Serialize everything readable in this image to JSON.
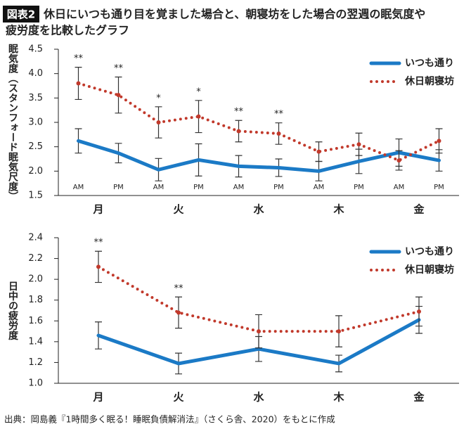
{
  "header": {
    "badge": "図表2",
    "title_lines": [
      "休日にいつも通り目を覚ました場合と、朝寝坊をした場合の翌週の眠気度や",
      "疲労度を比較したグラフ"
    ]
  },
  "source": "出典：岡島義『1時間多く眠る！睡眠負債解消法』（さくら舎、2020）をもとに作成",
  "chart_data": [
    {
      "type": "line",
      "y_label": "眠気度（スタンフォード眠気尺度）",
      "categories": [
        "AM",
        "PM",
        "AM",
        "PM",
        "AM",
        "PM",
        "AM",
        "PM",
        "AM",
        "PM"
      ],
      "groups": [
        "月",
        "火",
        "水",
        "木",
        "金"
      ],
      "ylim": [
        1.5,
        4.5
      ],
      "yticks": [
        1.5,
        {
          "value": 2,
          "label": "2.0"
        },
        2.5,
        {
          "value": 3,
          "label": "3.0"
        },
        3.5,
        {
          "value": 4,
          "label": "4.0"
        },
        4.5
      ],
      "legend": "upper right",
      "series": [
        {
          "name": "いつも通り",
          "color": "#1b7ac6",
          "style": "solid",
          "values": [
            2.62,
            2.37,
            2.03,
            2.23,
            2.1,
            2.07,
            2.0,
            2.2,
            2.38,
            2.22
          ],
          "errors": [
            0.25,
            0.2,
            0.23,
            0.33,
            0.22,
            0.18,
            0.2,
            0.25,
            0.28,
            0.22
          ]
        },
        {
          "name": "休日朝寝坊",
          "color": "#c1392b",
          "style": "dotted",
          "values": [
            3.8,
            3.56,
            3.0,
            3.12,
            2.82,
            2.77,
            2.4,
            2.55,
            2.22,
            2.62
          ],
          "errors": [
            0.33,
            0.37,
            0.32,
            0.33,
            0.22,
            0.22,
            0.2,
            0.23,
            0.2,
            0.25
          ]
        }
      ],
      "significance": [
        "**",
        "**",
        "*",
        "*",
        "**",
        "**",
        null,
        null,
        null,
        null
      ]
    },
    {
      "type": "line",
      "y_label": "日中の疲労度",
      "categories": [
        "月",
        "火",
        "水",
        "木",
        "金"
      ],
      "ylim": [
        1.0,
        2.4
      ],
      "yticks": [
        {
          "value": 1,
          "label": "1.0"
        },
        1.2,
        1.4,
        1.6,
        1.8,
        {
          "value": 2,
          "label": "2.0"
        },
        2.2,
        2.4
      ],
      "legend": "upper right",
      "series": [
        {
          "name": "いつも通り",
          "color": "#1b7ac6",
          "style": "solid",
          "values": [
            1.46,
            1.19,
            1.33,
            1.19,
            1.61
          ],
          "errors": [
            0.13,
            0.1,
            0.12,
            0.08,
            0.13
          ]
        },
        {
          "name": "休日朝寝坊",
          "color": "#c1392b",
          "style": "dotted",
          "values": [
            2.12,
            1.68,
            1.5,
            1.5,
            1.69
          ],
          "errors": [
            0.15,
            0.15,
            0.16,
            0.15,
            0.14
          ]
        }
      ],
      "significance": [
        "**",
        "**",
        null,
        null,
        null
      ]
    }
  ]
}
